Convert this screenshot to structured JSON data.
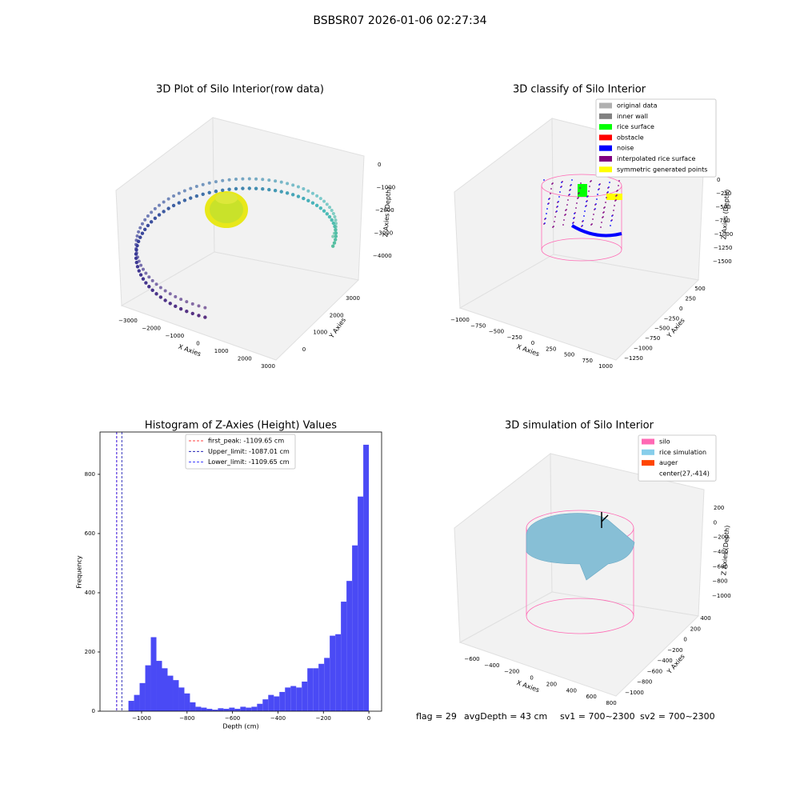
{
  "title": "BSBSR07 2026-01-06 02:27:34",
  "chart_data": [
    {
      "type": "scatter3d",
      "title": "3D Plot of Silo Interior(row data)",
      "x_label": "X Axies",
      "y_label": "Y Axies",
      "z_label": "Z Axies (Depth)",
      "xlim": [
        -3000,
        3000
      ],
      "xticks": [
        {
          "value": -3000,
          "label": "−3000"
        },
        {
          "value": -2000,
          "label": "−2000"
        },
        {
          "value": -1000,
          "label": "−1000"
        },
        0,
        1000,
        2000,
        3000
      ],
      "ylim": [
        0,
        3000
      ],
      "yticks": [
        0,
        1000,
        2000,
        3000
      ],
      "zlim": [
        -4000,
        0
      ],
      "zticks": [
        {
          "value": -4000,
          "label": "−4000"
        },
        {
          "value": -3000,
          "label": "−3000"
        },
        {
          "value": -2000,
          "label": "−2000"
        },
        {
          "value": -1000,
          "label": "−1000"
        },
        0
      ]
    },
    {
      "type": "scatter3d",
      "title": "3D classify of Silo Interior",
      "x_label": "X Axies",
      "y_label": "Y Axies",
      "z_label": "Z Axies (Depth)",
      "xlim": [
        -1000,
        1000
      ],
      "xticks": [
        {
          "value": -1000,
          "label": "−1000"
        },
        {
          "value": -750,
          "label": "−750"
        },
        {
          "value": -500,
          "label": "−500"
        },
        {
          "value": -250,
          "label": "−250"
        },
        0,
        250,
        500,
        750,
        1000
      ],
      "ylim": [
        -1250,
        500
      ],
      "yticks": [
        {
          "value": -1250,
          "label": "−1250"
        },
        {
          "value": -1000,
          "label": "−1000"
        },
        {
          "value": -750,
          "label": "−750"
        },
        {
          "value": -500,
          "label": "−500"
        },
        {
          "value": -250,
          "label": "−250"
        },
        0,
        250,
        500
      ],
      "zlim": [
        -1500,
        0
      ],
      "zticks": [
        {
          "value": -1500,
          "label": "−1500"
        },
        {
          "value": -1250,
          "label": "−1250"
        },
        {
          "value": -1000,
          "label": "−1000"
        },
        {
          "value": -750,
          "label": "−750"
        },
        {
          "value": -500,
          "label": "−500"
        },
        {
          "value": -250,
          "label": "−250"
        },
        0
      ],
      "legend": [
        {
          "name": "original data",
          "color": "#b0b0b0"
        },
        {
          "name": "inner wall",
          "color": "#808080"
        },
        {
          "name": "rice surface",
          "color": "#00ff00"
        },
        {
          "name": "obstacle",
          "color": "#ff0000"
        },
        {
          "name": "noise",
          "color": "#0000ff"
        },
        {
          "name": "interpolated rice surface",
          "color": "#800080"
        },
        {
          "name": "symmetric generated points",
          "color": "#ffff00"
        }
      ]
    },
    {
      "type": "histogram",
      "title": "Histogram of Z-Axies (Height) Values",
      "x_label": "Depth (cm)",
      "y_label": "Frequency",
      "color": "#4a4af5",
      "bins": [
        -1057.8,
        -1033.2,
        -1008.6,
        -984.0,
        -959.4,
        -934.8,
        -910.2,
        -885.6,
        -861.0,
        -836.4,
        -811.8,
        -787.2,
        -762.6,
        -738.0,
        -713.4,
        -688.8,
        -664.2,
        -639.6,
        -615.0,
        -590.4,
        -565.8,
        -541.2,
        -516.6,
        -492.0,
        -467.4,
        -442.8,
        -418.2,
        -393.6,
        -369.0,
        -344.4,
        -319.8,
        -295.2,
        -270.6,
        -246.0,
        -221.4,
        -196.8,
        -172.2,
        -147.6,
        -123.0,
        -98.4,
        -73.8,
        -49.2,
        -24.6,
        0.0
      ],
      "values": [
        35,
        55,
        95,
        155,
        250,
        170,
        145,
        120,
        105,
        80,
        60,
        30,
        15,
        12,
        8,
        5,
        10,
        8,
        12,
        8,
        15,
        12,
        15,
        25,
        40,
        55,
        50,
        65,
        80,
        85,
        80,
        100,
        145,
        145,
        160,
        180,
        255,
        260,
        370,
        440,
        560,
        725,
        900
      ],
      "xlim": [
        -1183,
        56
      ],
      "xticks": [
        {
          "value": -1000,
          "label": "−1000"
        },
        {
          "value": -800,
          "label": "−800"
        },
        {
          "value": -600,
          "label": "−600"
        },
        {
          "value": -400,
          "label": "−400"
        },
        {
          "value": -200,
          "label": "−200"
        },
        0
      ],
      "ylim": [
        0,
        943
      ],
      "yticks": [
        0,
        200,
        400,
        600,
        800
      ],
      "lines": [
        {
          "label": "first_peak: -1109.65 cm",
          "value": -1109.65,
          "color": "#ff0000"
        },
        {
          "label": "Upper_limit: -1087.01 cm",
          "value": -1087.01,
          "color": "#0000aa"
        },
        {
          "label": "Lower_limit: -1109.65 cm",
          "value": -1109.65,
          "color": "#0000ff"
        }
      ]
    },
    {
      "type": "surface3d",
      "title": "3D simulation of Silo Interior",
      "x_label": "X Axies",
      "y_label": "Y Axies",
      "z_label": "Z Axies (Depth)",
      "xlim": [
        -600,
        800
      ],
      "xticks": [
        {
          "value": -600,
          "label": "−600"
        },
        {
          "value": -400,
          "label": "−400"
        },
        {
          "value": -200,
          "label": "−200"
        },
        0,
        200,
        400,
        600,
        800
      ],
      "ylim": [
        -1000,
        400
      ],
      "yticks": [
        {
          "value": -1000,
          "label": "−1000"
        },
        {
          "value": -800,
          "label": "−800"
        },
        {
          "value": -600,
          "label": "−600"
        },
        {
          "value": -400,
          "label": "−400"
        },
        {
          "value": -200,
          "label": "−200"
        },
        0,
        200,
        400
      ],
      "zlim": [
        -1000,
        200
      ],
      "zticks": [
        {
          "value": -1000,
          "label": "−1000"
        },
        {
          "value": -800,
          "label": "−800"
        },
        {
          "value": -600,
          "label": "−600"
        },
        {
          "value": -400,
          "label": "−400"
        },
        {
          "value": -200,
          "label": "−200"
        },
        0,
        200
      ],
      "legend": [
        {
          "name": "silo",
          "color": "#ff69b4"
        },
        {
          "name": "rice simulation",
          "color": "#87ceeb"
        },
        {
          "name": "auger",
          "color": "#ff4500"
        },
        {
          "name": "center(27,-414)"
        }
      ],
      "annotations": [
        "flag = 29",
        "avgDepth = 43 cm",
        "sv1 = 700~2300",
        "sv2 = 700~2300"
      ]
    }
  ]
}
